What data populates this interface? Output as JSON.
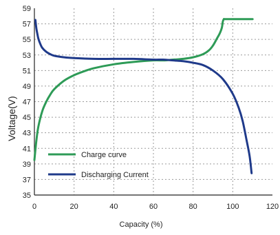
{
  "chart_data": {
    "type": "line",
    "title": "",
    "xlabel": "Capacity (%)",
    "ylabel": "Voltage(V)",
    "xlim": [
      0,
      120
    ],
    "ylim": [
      35,
      59
    ],
    "x_ticks": [
      "0",
      "20",
      "40",
      "60",
      "80",
      "100",
      "120"
    ],
    "y_ticks": [
      "35",
      "37",
      "39",
      "41",
      "43",
      "45",
      "47",
      "49",
      "51",
      "53",
      "55",
      "57",
      "59"
    ],
    "grid": true,
    "legend_position": "bottom-left",
    "series": [
      {
        "name": "Charge curve",
        "color": "#2e9b57",
        "x": [
          0,
          1,
          2,
          4,
          6,
          8,
          10,
          15,
          20,
          25,
          30,
          40,
          50,
          60,
          65,
          70,
          75,
          80,
          85,
          88,
          90,
          92,
          93.5,
          94.5,
          95,
          95.5,
          96,
          100,
          105,
          110
        ],
        "y": [
          39.5,
          42.0,
          43.8,
          45.8,
          47.0,
          47.9,
          48.6,
          49.7,
          50.4,
          50.9,
          51.3,
          51.8,
          52.1,
          52.3,
          52.3,
          52.4,
          52.5,
          52.7,
          53.1,
          53.6,
          54.2,
          55.1,
          55.8,
          56.5,
          57.3,
          57.6,
          57.6,
          57.6,
          57.6,
          57.6
        ]
      },
      {
        "name": "Discharging Current",
        "color": "#1f3a8a",
        "x": [
          0.5,
          1,
          1.5,
          2,
          3,
          4,
          6,
          8,
          10,
          15,
          20,
          30,
          40,
          50,
          60,
          65,
          70,
          75,
          80,
          85,
          90,
          95,
          100,
          103,
          105,
          107,
          108.5,
          109.5
        ],
        "y": [
          57.5,
          56.4,
          55.7,
          55.1,
          54.4,
          53.9,
          53.4,
          53.1,
          52.9,
          52.7,
          52.6,
          52.5,
          52.5,
          52.5,
          52.4,
          52.4,
          52.3,
          52.2,
          52.0,
          51.7,
          51.0,
          49.9,
          48.0,
          46.2,
          44.5,
          42.0,
          40.0,
          37.8
        ]
      }
    ]
  }
}
